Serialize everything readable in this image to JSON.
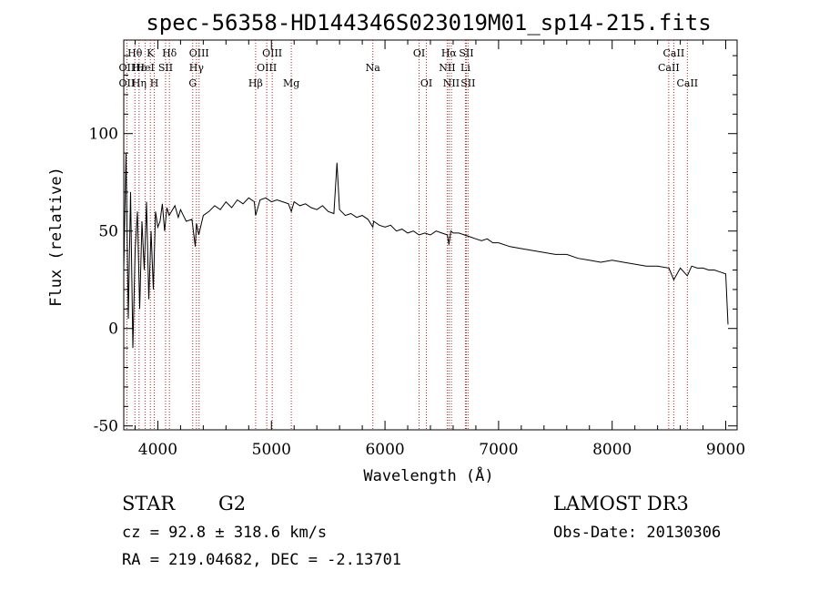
{
  "chart_data": {
    "type": "line",
    "title": "spec-56358-HD144346S023019M01_sp14-215.fits",
    "xlabel": "Wavelength (Å)",
    "ylabel": "Flux (relative)",
    "xlim": [
      3700,
      9100
    ],
    "ylim": [
      -52,
      148
    ],
    "x_ticks": [
      4000,
      5000,
      6000,
      7000,
      8000,
      9000
    ],
    "y_ticks": [
      -50,
      0,
      50,
      100
    ],
    "line_color": "#000000",
    "marker_color": "#b22222",
    "series": [
      {
        "name": "spectrum",
        "x": [
          3700,
          3720,
          3740,
          3760,
          3780,
          3800,
          3820,
          3840,
          3860,
          3880,
          3900,
          3920,
          3940,
          3960,
          3980,
          4000,
          4020,
          4040,
          4060,
          4080,
          4100,
          4120,
          4150,
          4180,
          4200,
          4250,
          4300,
          4330,
          4340,
          4360,
          4400,
          4450,
          4500,
          4550,
          4600,
          4650,
          4700,
          4750,
          4800,
          4850,
          4861,
          4900,
          4950,
          5000,
          5050,
          5100,
          5150,
          5175,
          5200,
          5250,
          5300,
          5350,
          5400,
          5450,
          5500,
          5550,
          5577,
          5600,
          5650,
          5700,
          5750,
          5800,
          5850,
          5893,
          5900,
          5950,
          6000,
          6050,
          6100,
          6150,
          6200,
          6250,
          6300,
          6350,
          6400,
          6450,
          6500,
          6550,
          6563,
          6580,
          6600,
          6650,
          6700,
          6750,
          6800,
          6850,
          6900,
          6950,
          7000,
          7100,
          7200,
          7300,
          7400,
          7500,
          7600,
          7700,
          7800,
          7900,
          8000,
          8100,
          8200,
          8300,
          8400,
          8500,
          8542,
          8600,
          8662,
          8700,
          8750,
          8800,
          8850,
          8900,
          8950,
          9000,
          9020
        ],
        "y": [
          30,
          90,
          5,
          70,
          -10,
          40,
          60,
          10,
          55,
          30,
          65,
          15,
          50,
          20,
          60,
          52,
          55,
          64,
          50,
          62,
          58,
          60,
          63,
          57,
          61,
          55,
          56,
          42,
          54,
          48,
          58,
          60,
          63,
          61,
          65,
          62,
          66,
          64,
          67,
          65,
          58,
          66,
          67,
          65,
          66,
          65,
          64,
          60,
          65,
          63,
          64,
          62,
          61,
          63,
          60,
          59,
          85,
          61,
          58,
          59,
          57,
          58,
          56,
          52,
          55,
          53,
          52,
          53,
          50,
          51,
          49,
          50,
          48,
          49,
          48,
          50,
          49,
          48,
          43,
          50,
          49,
          49,
          48,
          47,
          46,
          45,
          46,
          44,
          44,
          42,
          41,
          40,
          39,
          38,
          38,
          36,
          35,
          34,
          35,
          34,
          33,
          32,
          32,
          31,
          25,
          31,
          27,
          32,
          31,
          31,
          30,
          30,
          29,
          28,
          2
        ]
      }
    ],
    "line_markers": [
      {
        "wavelength": 3727,
        "row1": "",
        "row2": "OII",
        "row3": "OII"
      },
      {
        "wavelength": 3798,
        "row1": "Hθ",
        "row2": "",
        "row3": ""
      },
      {
        "wavelength": 3835,
        "row1": "",
        "row2": "Hε",
        "row3": "Hη"
      },
      {
        "wavelength": 3889,
        "row1": "",
        "row2": "HeI",
        "row3": ""
      },
      {
        "wavelength": 3934,
        "row1": "K",
        "row2": "",
        "row3": ""
      },
      {
        "wavelength": 3969,
        "row1": "",
        "row2": "",
        "row3": "H"
      },
      {
        "wavelength": 4068,
        "row1": "",
        "row2": "SII",
        "row3": ""
      },
      {
        "wavelength": 4102,
        "row1": "Hδ",
        "row2": "",
        "row3": ""
      },
      {
        "wavelength": 4307,
        "row1": "",
        "row2": "",
        "row3": "G"
      },
      {
        "wavelength": 4340,
        "row1": "",
        "row2": "Hγ",
        "row3": ""
      },
      {
        "wavelength": 4363,
        "row1": "OIII",
        "row2": "",
        "row3": ""
      },
      {
        "wavelength": 4861,
        "row1": "",
        "row2": "",
        "row3": "Hβ"
      },
      {
        "wavelength": 4959,
        "row1": "",
        "row2": "OIII",
        "row3": ""
      },
      {
        "wavelength": 5007,
        "row1": "OIII",
        "row2": "",
        "row3": ""
      },
      {
        "wavelength": 5175,
        "row1": "",
        "row2": "",
        "row3": "Mg"
      },
      {
        "wavelength": 5893,
        "row1": "",
        "row2": "Na",
        "row3": ""
      },
      {
        "wavelength": 6300,
        "row1": "OI",
        "row2": "",
        "row3": ""
      },
      {
        "wavelength": 6364,
        "row1": "",
        "row2": "",
        "row3": "OI"
      },
      {
        "wavelength": 6548,
        "row1": "",
        "row2": "NII",
        "row3": ""
      },
      {
        "wavelength": 6563,
        "row1": "Hα",
        "row2": "",
        "row3": ""
      },
      {
        "wavelength": 6584,
        "row1": "",
        "row2": "",
        "row3": "NII"
      },
      {
        "wavelength": 6708,
        "row1": "",
        "row2": "Li",
        "row3": ""
      },
      {
        "wavelength": 6716,
        "row1": "SII",
        "row2": "",
        "row3": ""
      },
      {
        "wavelength": 6731,
        "row1": "",
        "row2": "",
        "row3": "SII"
      },
      {
        "wavelength": 8498,
        "row1": "",
        "row2": "CaII",
        "row3": ""
      },
      {
        "wavelength": 8542,
        "row1": "CaII",
        "row2": "",
        "row3": ""
      },
      {
        "wavelength": 8662,
        "row1": "",
        "row2": "",
        "row3": "CaII"
      }
    ]
  },
  "info": {
    "object_class": "STAR",
    "subclass": "G2",
    "survey": "LAMOST DR3",
    "redshift": "cz = 92.8 ± 318.6 km/s",
    "obs_date": "Obs-Date: 20130306",
    "coords": "RA = 219.04682, DEC =  -2.13701"
  }
}
